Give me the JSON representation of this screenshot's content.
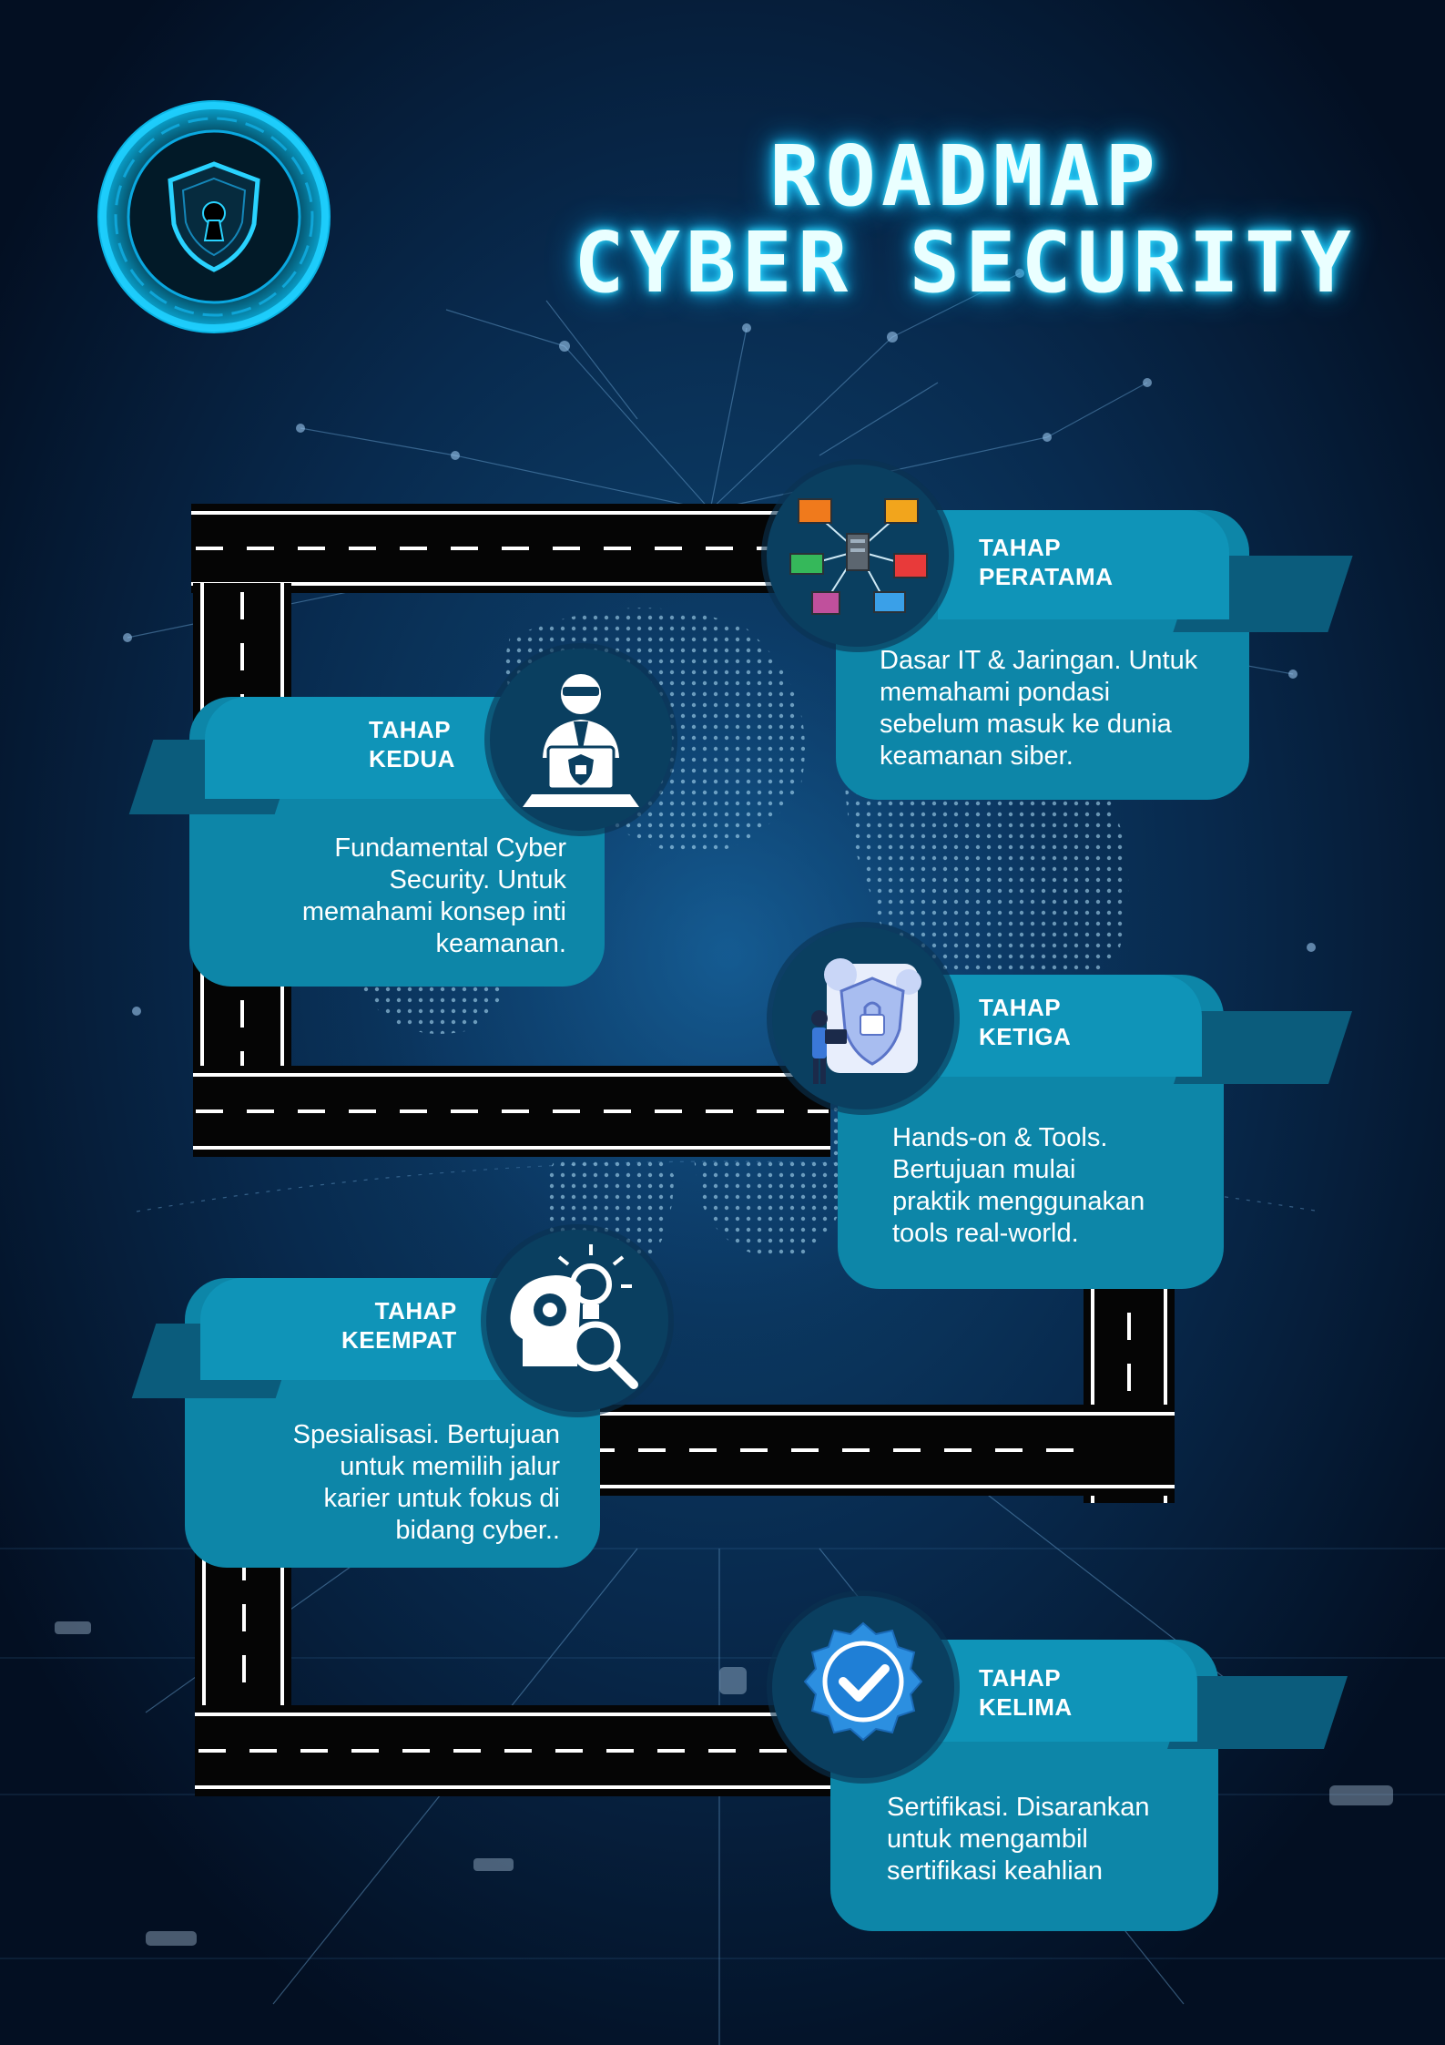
{
  "title": {
    "line1": "ROADMAP",
    "line2": "CYBER SECURITY"
  },
  "colors": {
    "background": "#061a33",
    "card": "#0d86a8",
    "card_accent": "#0b5c7c",
    "glow": "#33e0ff",
    "road": "#050505"
  },
  "stages": [
    {
      "label_line1": "TAHAP",
      "label_line2": "PERATAMA",
      "description": [
        "Dasar IT & Jaringan. Untuk",
        "memahami pondasi",
        "sebelum masuk ke dunia",
        "keamanan siber."
      ],
      "icon": "network-icon"
    },
    {
      "label_line1": "TAHAP",
      "label_line2": "KEDUA",
      "description": [
        "Fundamental Cyber",
        "Security. Untuk",
        "memahami konsep inti",
        "keamanan."
      ],
      "icon": "hacker-laptop-icon"
    },
    {
      "label_line1": "TAHAP",
      "label_line2": "KETIGA",
      "description": [
        "Hands-on & Tools.",
        "Bertujuan mulai",
        "praktik menggunakan",
        "tools real-world."
      ],
      "icon": "security-practice-icon"
    },
    {
      "label_line1": "TAHAP",
      "label_line2": "KEEMPAT",
      "description": [
        "Spesialisasi. Bertujuan",
        "untuk memilih jalur",
        "karier untuk fokus di",
        "bidang cyber.."
      ],
      "icon": "head-lightbulb-icon"
    },
    {
      "label_line1": "TAHAP",
      "label_line2": "KELIMA",
      "description": [
        "Sertifikasi. Disarankan",
        "untuk mengambil",
        "sertifikasi keahlian"
      ],
      "icon": "verified-badge-icon"
    }
  ],
  "logo": {
    "icon": "shield-keyhole-icon"
  }
}
